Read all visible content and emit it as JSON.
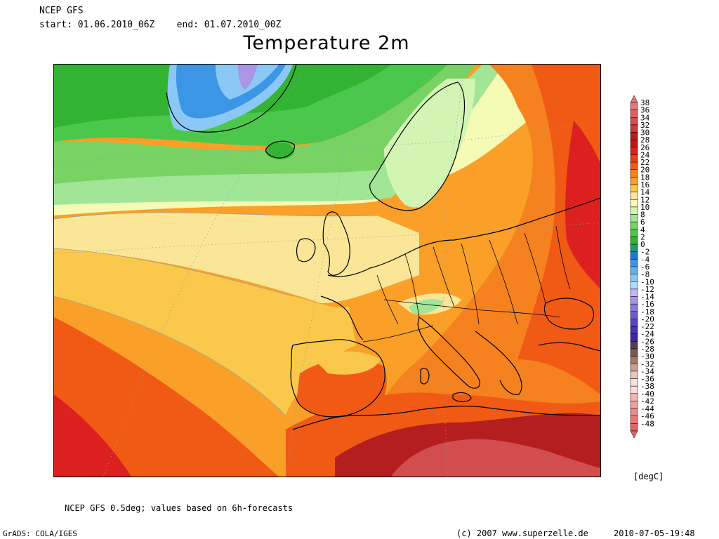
{
  "header": {
    "model": "NCEP GFS",
    "range": "start: 01.06.2010_06Z    end: 01.07.2010_00Z",
    "title": "Temperature 2m"
  },
  "legend": {
    "unit": "[degC]",
    "labels": [
      "38",
      "36",
      "34",
      "32",
      "30",
      "28",
      "26",
      "24",
      "22",
      "20",
      "18",
      "16",
      "14",
      "12",
      "10",
      "8",
      "6",
      "4",
      "2",
      "0",
      "-2",
      "-4",
      "-6",
      "-8",
      "-10",
      "-12",
      "-14",
      "-16",
      "-18",
      "-20",
      "-22",
      "-24",
      "-26",
      "-28",
      "-30",
      "-32",
      "-34",
      "-36",
      "-38",
      "-40",
      "-42",
      "-44",
      "-46",
      "-48"
    ],
    "colors": [
      "#e67a7a",
      "#dc6262",
      "#d24e4e",
      "#c83c3c",
      "#b41e1e",
      "#c81414",
      "#dc2020",
      "#f03c14",
      "#f05a14",
      "#f5821e",
      "#faa028",
      "#fac84b",
      "#fae696",
      "#f5fab4",
      "#d2f5b4",
      "#a0e696",
      "#78d264",
      "#4bc84b",
      "#32b432",
      "#1ea064",
      "#1e78d2",
      "#3c96e6",
      "#64aff0",
      "#8cc8f5",
      "#b4dcfa",
      "#c8b4f0",
      "#aa96e6",
      "#8c78dc",
      "#6e5ad2",
      "#5a46c8",
      "#4b32b4",
      "#3c28a0",
      "#5a3c50",
      "#785a50",
      "#a07866",
      "#c8a090",
      "#e6c8be",
      "#f5e1d7",
      "#fadcdc",
      "#f5b4b4",
      "#f0a0a0",
      "#eb8c8c",
      "#e67878",
      "#e66464"
    ]
  },
  "footer": {
    "note": "NCEP GFS 0.5deg; values based on 6h-forecasts",
    "grads": "GrADS: COLA/IGES",
    "copyright": "(c) 2007 www.superzelle.de",
    "date": "2010-07-05-19:48"
  },
  "map": {
    "region": "Europe / North Atlantic",
    "field": "2m temperature",
    "zones": {
      "greenland_core": "#3c96e6",
      "greenland_ice": "#8cc8f5",
      "greenland_peak": "#aa96e6",
      "arctic_green": "#32b432",
      "green": "#4bc84b",
      "light_green": "#78d264",
      "pale_green": "#a0e696",
      "pale_yellow": "#f5fab4",
      "yellow": "#fae696",
      "light_orange": "#fac84b",
      "orange": "#faa028",
      "dark_orange": "#f5821e",
      "red_orange": "#f05a14",
      "red": "#dc2020",
      "dark_red": "#b41e1e",
      "maroon": "#c83c3c",
      "sahara_pink": "#d24e4e"
    }
  }
}
